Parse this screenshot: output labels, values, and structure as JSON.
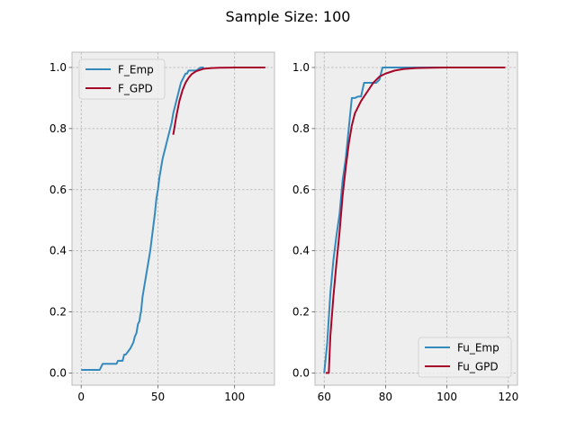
{
  "figure": {
    "title": "Sample Size: 100"
  },
  "colors": {
    "background": "#ffffff",
    "axes_face": "#eeeeee",
    "grid": "#b2b2b2",
    "spine": "#bcbcbc",
    "text": "#000000"
  },
  "chart_data": [
    {
      "type": "line",
      "title": "",
      "xlabel": "",
      "ylabel": "",
      "xlim": [
        -6,
        126
      ],
      "ylim": [
        -0.04,
        1.05
      ],
      "xticks": [
        0,
        50,
        100
      ],
      "xtick_labels": [
        "0",
        "50",
        "100"
      ],
      "yticks": [
        0.0,
        0.2,
        0.4,
        0.6,
        0.8,
        1.0
      ],
      "ytick_labels": [
        "0.0",
        "0.2",
        "0.4",
        "0.6",
        "0.8",
        "1.0"
      ],
      "grid": true,
      "legend": {
        "placement": "upper-left",
        "entries": [
          "F_Emp",
          "F_GPD"
        ]
      },
      "series": [
        {
          "name": "F_Emp",
          "color": "#348abd",
          "x": [
            0,
            12,
            14,
            23,
            24,
            27,
            28,
            29,
            32,
            34,
            35,
            36,
            37,
            38,
            38.5,
            39,
            40,
            41,
            42,
            43,
            44,
            45,
            46,
            47,
            48,
            49,
            50,
            51,
            52,
            53,
            54,
            55,
            56,
            57,
            58,
            59,
            60,
            61,
            62,
            63,
            64,
            65,
            67,
            68,
            69,
            70,
            72,
            75,
            78,
            80
          ],
          "y": [
            0.01,
            0.01,
            0.03,
            0.03,
            0.04,
            0.04,
            0.06,
            0.06,
            0.08,
            0.1,
            0.12,
            0.13,
            0.16,
            0.17,
            0.19,
            0.2,
            0.25,
            0.28,
            0.31,
            0.34,
            0.37,
            0.4,
            0.44,
            0.48,
            0.52,
            0.57,
            0.6,
            0.64,
            0.67,
            0.7,
            0.72,
            0.74,
            0.76,
            0.78,
            0.8,
            0.82,
            0.85,
            0.87,
            0.89,
            0.91,
            0.93,
            0.95,
            0.97,
            0.98,
            0.98,
            0.99,
            0.99,
            0.99,
            1.0,
            1.0
          ]
        },
        {
          "name": "F_GPD",
          "color": "#a60628",
          "x": [
            60,
            62,
            64,
            66,
            68,
            70,
            72,
            75,
            80,
            85,
            90,
            100,
            110,
            120
          ],
          "y": [
            0.78,
            0.84,
            0.89,
            0.925,
            0.95,
            0.966,
            0.978,
            0.988,
            0.996,
            0.998,
            0.999,
            1.0,
            1.0,
            1.0
          ]
        }
      ]
    },
    {
      "type": "line",
      "title": "",
      "xlabel": "",
      "ylabel": "",
      "xlim": [
        57,
        123
      ],
      "ylim": [
        -0.04,
        1.05
      ],
      "xticks": [
        60,
        80,
        100,
        120
      ],
      "xtick_labels": [
        "60",
        "80",
        "100",
        "120"
      ],
      "yticks": [
        0.0,
        0.2,
        0.4,
        0.6,
        0.8,
        1.0
      ],
      "ytick_labels": [
        "0.0",
        "0.2",
        "0.4",
        "0.6",
        "0.8",
        "1.0"
      ],
      "grid": true,
      "legend": {
        "placement": "lower-right",
        "entries": [
          "Fu_Emp",
          "Fu_GPD"
        ]
      },
      "series": [
        {
          "name": "Fu_Emp",
          "color": "#348abd",
          "x": [
            60,
            61,
            62,
            63,
            64,
            65,
            66,
            67,
            68,
            69,
            70,
            71,
            72,
            73,
            74,
            75,
            76,
            77,
            78,
            79,
            80,
            85,
            90,
            100,
            110,
            119
          ],
          "y": [
            0.0,
            0.1,
            0.26,
            0.37,
            0.45,
            0.52,
            0.63,
            0.7,
            0.8,
            0.9,
            0.9,
            0.905,
            0.905,
            0.95,
            0.95,
            0.95,
            0.95,
            0.95,
            0.96,
            1.0,
            1.0,
            1.0,
            1.0,
            1.0,
            1.0,
            1.0
          ]
        },
        {
          "name": "Fu_GPD",
          "color": "#a60628",
          "x": [
            60.5,
            61.5,
            62,
            63,
            64,
            65,
            66,
            67,
            68,
            69,
            70,
            72,
            74,
            76,
            78,
            80,
            83,
            86,
            90,
            95,
            100,
            110,
            119
          ],
          "y": [
            0.0,
            0.0,
            0.12,
            0.25,
            0.36,
            0.46,
            0.58,
            0.67,
            0.75,
            0.81,
            0.85,
            0.89,
            0.92,
            0.95,
            0.97,
            0.98,
            0.99,
            0.995,
            0.998,
            0.999,
            1.0,
            1.0,
            1.0
          ]
        }
      ]
    }
  ]
}
